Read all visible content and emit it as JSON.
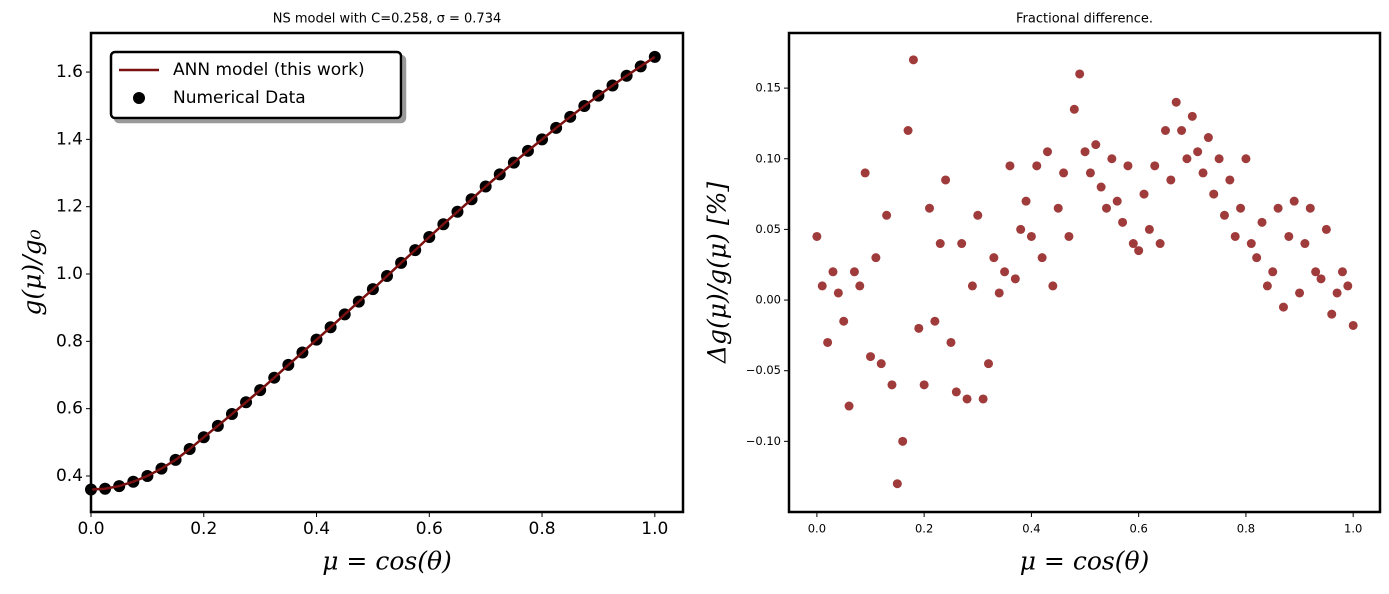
{
  "chart_data": [
    {
      "type": "line",
      "title": "NS model with C=0.258, σ = 0.734",
      "xlabel": "μ = cos(θ)",
      "ylabel": "g(μ)/g₀",
      "x": [
        0,
        0.025,
        0.05,
        0.075,
        0.1,
        0.125,
        0.15,
        0.175,
        0.2,
        0.225,
        0.25,
        0.275,
        0.3,
        0.325,
        0.35,
        0.375,
        0.4,
        0.425,
        0.45,
        0.475,
        0.5,
        0.525,
        0.55,
        0.575,
        0.6,
        0.625,
        0.65,
        0.675,
        0.7,
        0.725,
        0.75,
        0.775,
        0.8,
        0.825,
        0.85,
        0.875,
        0.9,
        0.925,
        0.95,
        0.975,
        1.0
      ],
      "series": [
        {
          "name": "ANN model (this work)",
          "type": "line",
          "color": "#7a1010",
          "values": [
            0.36,
            0.362,
            0.37,
            0.383,
            0.4,
            0.422,
            0.448,
            0.48,
            0.515,
            0.549,
            0.584,
            0.619,
            0.655,
            0.692,
            0.73,
            0.767,
            0.805,
            0.842,
            0.88,
            0.918,
            0.955,
            0.994,
            1.033,
            1.071,
            1.11,
            1.148,
            1.185,
            1.222,
            1.26,
            1.296,
            1.331,
            1.366,
            1.4,
            1.434,
            1.467,
            1.499,
            1.53,
            1.56,
            1.589,
            1.617,
            1.645
          ]
        },
        {
          "name": "Numerical Data",
          "type": "scatter",
          "color": "#000000",
          "values": [
            0.36,
            0.362,
            0.37,
            0.383,
            0.4,
            0.422,
            0.448,
            0.48,
            0.515,
            0.549,
            0.584,
            0.619,
            0.655,
            0.692,
            0.73,
            0.767,
            0.805,
            0.842,
            0.88,
            0.918,
            0.955,
            0.994,
            1.033,
            1.071,
            1.11,
            1.148,
            1.185,
            1.222,
            1.26,
            1.296,
            1.331,
            1.366,
            1.4,
            1.434,
            1.467,
            1.499,
            1.53,
            1.56,
            1.589,
            1.617,
            1.645
          ]
        }
      ],
      "xlim": [
        0,
        1.05
      ],
      "xticks": [
        {
          "value": 0,
          "label": "0.0"
        },
        0.2,
        0.4,
        0.6,
        0.8,
        {
          "value": 1,
          "label": "1.0"
        }
      ],
      "ylim": [
        0.293,
        1.716
      ],
      "yticks": [
        0.4,
        0.6,
        0.8,
        {
          "value": 1,
          "label": "1.0"
        },
        1.2,
        1.4,
        1.6
      ],
      "legend": "upper left"
    },
    {
      "type": "scatter",
      "title": "Fractional difference.",
      "xlabel": "μ = cos(θ)",
      "ylabel": "Δg(μ)/g(μ)  [%]",
      "color": "#8b1010",
      "x": [
        0,
        0.01,
        0.02,
        0.03,
        0.04,
        0.05,
        0.06,
        0.07,
        0.08,
        0.09,
        0.1,
        0.11,
        0.12,
        0.13,
        0.14,
        0.15,
        0.16,
        0.17,
        0.18,
        0.19,
        0.2,
        0.21,
        0.22,
        0.23,
        0.24,
        0.25,
        0.26,
        0.27,
        0.28,
        0.29,
        0.3,
        0.31,
        0.32,
        0.33,
        0.34,
        0.35,
        0.36,
        0.37,
        0.38,
        0.39,
        0.4,
        0.41,
        0.42,
        0.43,
        0.44,
        0.45,
        0.46,
        0.47,
        0.48,
        0.49,
        0.5,
        0.51,
        0.52,
        0.53,
        0.54,
        0.55,
        0.56,
        0.57,
        0.58,
        0.59,
        0.6,
        0.61,
        0.62,
        0.63,
        0.64,
        0.65,
        0.66,
        0.67,
        0.68,
        0.69,
        0.7,
        0.71,
        0.72,
        0.73,
        0.74,
        0.75,
        0.76,
        0.77,
        0.78,
        0.79,
        0.8,
        0.81,
        0.82,
        0.83,
        0.84,
        0.85,
        0.86,
        0.87,
        0.88,
        0.89,
        0.9,
        0.91,
        0.92,
        0.93,
        0.94,
        0.95,
        0.96,
        0.97,
        0.98,
        0.99,
        1.0
      ],
      "values": [
        0.045,
        0.01,
        -0.03,
        0.02,
        0.005,
        -0.015,
        -0.075,
        0.02,
        0.01,
        0.09,
        -0.04,
        0.03,
        -0.045,
        0.06,
        -0.06,
        -0.13,
        -0.1,
        0.12,
        0.17,
        -0.02,
        -0.06,
        0.065,
        -0.015,
        0.04,
        0.085,
        -0.03,
        -0.065,
        0.04,
        -0.07,
        0.01,
        0.06,
        -0.07,
        -0.045,
        0.03,
        0.005,
        0.02,
        0.095,
        0.015,
        0.05,
        0.07,
        0.045,
        0.095,
        0.03,
        0.105,
        0.01,
        0.065,
        0.09,
        0.045,
        0.135,
        0.16,
        0.105,
        0.09,
        0.11,
        0.08,
        0.065,
        0.1,
        0.07,
        0.055,
        0.095,
        0.04,
        0.035,
        0.075,
        0.05,
        0.095,
        0.04,
        0.12,
        0.085,
        0.14,
        0.12,
        0.1,
        0.13,
        0.105,
        0.09,
        0.115,
        0.075,
        0.1,
        0.06,
        0.085,
        0.045,
        0.065,
        0.1,
        0.04,
        0.03,
        0.055,
        0.01,
        0.02,
        0.065,
        -0.005,
        0.045,
        0.07,
        0.005,
        0.04,
        0.065,
        0.02,
        0.015,
        0.05,
        -0.01,
        0.005,
        0.02,
        0.01,
        -0.018
      ],
      "xlim": [
        -0.052,
        1.05
      ],
      "xticks": [
        {
          "value": 0,
          "label": "0.0"
        },
        0.2,
        0.4,
        0.6,
        0.8,
        {
          "value": 1,
          "label": "1.0"
        }
      ],
      "ylim": [
        -0.15,
        0.189
      ],
      "yticks": [
        {
          "value": -0.1,
          "label": "−0.10"
        },
        {
          "value": -0.05,
          "label": "−0.05"
        },
        {
          "value": 0,
          "label": "0.00"
        },
        0.05,
        {
          "value": 0.1,
          "label": "0.10"
        },
        0.15
      ]
    }
  ]
}
